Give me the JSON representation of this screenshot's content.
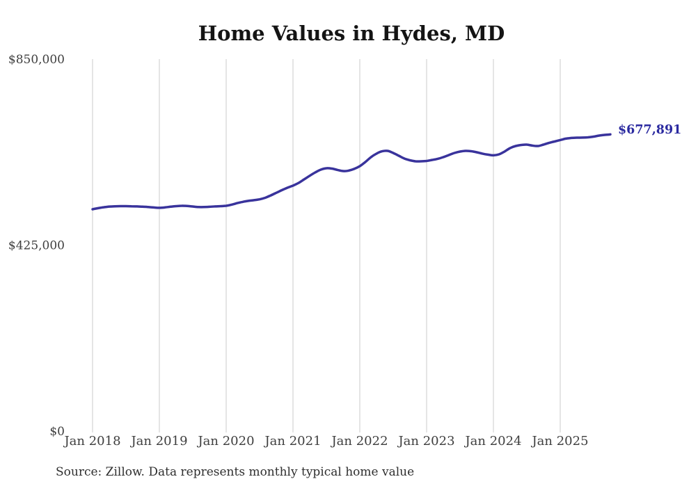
{
  "chart": {
    "title": "Home Values in Hydes, MD",
    "source_note": "Source: Zillow. Data represents monthly typical home value",
    "end_label": "$677,891",
    "colors": {
      "line": "#39339c",
      "end_label": "#2b2aa0",
      "grid": "#cbcbcb",
      "axis_text": "#3e3e3e",
      "title_text": "#141414"
    }
  },
  "chart_data": {
    "type": "line",
    "title": "Home Values in Hydes, MD",
    "xlabel": "",
    "ylabel": "",
    "frequency": "monthly",
    "x_start": "Jan 2018",
    "x_end": "Oct 2025",
    "x_tick_labels": [
      "Jan 2018",
      "Jan 2019",
      "Jan 2020",
      "Jan 2021",
      "Jan 2022",
      "Jan 2023",
      "Jan 2024",
      "Jan 2025"
    ],
    "y_ticks": [
      {
        "label": "$850,000",
        "value": 850000
      },
      {
        "label": "$425,000",
        "value": 425000
      },
      {
        "label": "$0",
        "value": 0
      }
    ],
    "ylim": [
      0,
      850000
    ],
    "grid": "vertical-yearly-only",
    "legend": "none",
    "final_value": 677891,
    "final_value_label": "$677,891",
    "series": [
      {
        "name": "Typical home value",
        "values": [
          506800,
          509400,
          511500,
          513000,
          513700,
          513900,
          513900,
          513700,
          513300,
          512700,
          511900,
          510900,
          510100,
          511100,
          512700,
          514000,
          514800,
          514400,
          513100,
          511900,
          511900,
          512500,
          513300,
          514000,
          514800,
          517400,
          520900,
          523900,
          526100,
          527600,
          529600,
          533100,
          538400,
          544400,
          550500,
          556100,
          560900,
          567100,
          575200,
          583400,
          591100,
          597400,
          600600,
          599800,
          596700,
          594200,
          595100,
          599100,
          605400,
          614900,
          625900,
          634000,
          639400,
          640300,
          635500,
          629200,
          622800,
          618900,
          616500,
          616400,
          617300,
          619600,
          622100,
          626000,
          630800,
          635500,
          638700,
          640300,
          639500,
          637100,
          634100,
          631700,
          630100,
          632400,
          638700,
          646700,
          651400,
          653800,
          654600,
          652300,
          651400,
          654600,
          658600,
          661800,
          665000,
          668200,
          669800,
          670500,
          670600,
          671300,
          672900,
          675200,
          676800,
          677891
        ]
      }
    ]
  }
}
